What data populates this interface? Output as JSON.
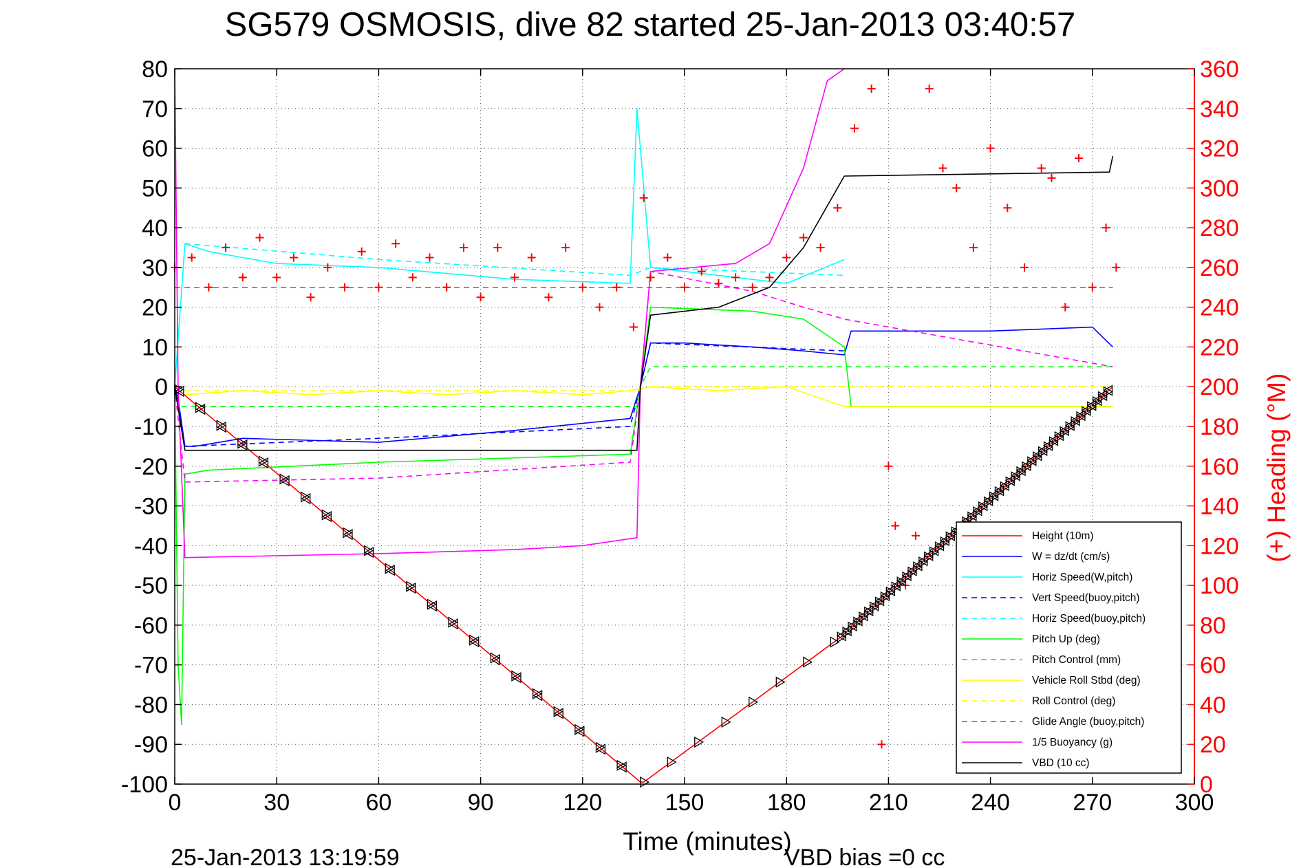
{
  "chart_data": {
    "type": "line",
    "title": "SG579 OSMOSIS, dive 82 started 25-Jan-2013 03:40:57",
    "xlabel": "Time (minutes)",
    "ylabel": "",
    "y2label": "(+) Heading (°M)",
    "xlim": [
      0,
      300
    ],
    "ylim": [
      -100,
      80
    ],
    "y2lim": [
      0,
      360
    ],
    "xticks": [
      "0",
      "30",
      "60",
      "90",
      "120",
      "150",
      "180",
      "210",
      "240",
      "270",
      "300"
    ],
    "yticks": [
      "80",
      "70",
      "60",
      "50",
      "40",
      "30",
      "20",
      "10",
      "0",
      "-10",
      "-20",
      "-30",
      "-40",
      "-50",
      "-60",
      "-70",
      "-80",
      "-90",
      "-100"
    ],
    "y2ticks": [
      "360",
      "340",
      "320",
      "300",
      "280",
      "260",
      "240",
      "220",
      "200",
      "180",
      "160",
      "140",
      "120",
      "100",
      "80",
      "60",
      "40",
      "20",
      "0"
    ],
    "grid": true,
    "legend_position": "bottom-right",
    "footer_left": "25-Jan-2013 13:19:59",
    "footer_right": "VBD bias =0 cc",
    "colors": {
      "height": "#ff0000",
      "w": "#0000ff",
      "horiz_speed": "#00ffff",
      "pitch": "#00ff00",
      "roll": "#ffff00",
      "glide": "#ff00ff",
      "buoyancy": "#ff00ff",
      "vbd": "#000000",
      "heading": "#ff0000"
    },
    "series": [
      {
        "key": "height",
        "name": "Height (10m)",
        "color": "#ff0000",
        "dash": "",
        "x": [
          0,
          137,
          138,
          196,
          276
        ],
        "y": [
          0,
          -99.5,
          -99.5,
          -63,
          0
        ]
      },
      {
        "key": "w",
        "name": "W = dz/dt (cm/s)",
        "color": "#0000ff",
        "dash": "",
        "x": [
          0,
          1,
          3,
          6,
          20,
          60,
          100,
          134,
          137,
          140,
          150,
          170,
          185,
          197,
          199,
          240,
          270,
          276
        ],
        "y": [
          0,
          -3,
          -15,
          -15,
          -13,
          -14,
          -11,
          -8,
          0,
          11,
          11,
          10,
          9,
          8,
          14,
          14,
          15,
          10
        ]
      },
      {
        "key": "horiz_speed",
        "name": "Horiz Speed(W,pitch)",
        "color": "#00ffff",
        "dash": "",
        "x": [
          0,
          3,
          10,
          30,
          60,
          100,
          134,
          136,
          140,
          160,
          180,
          197
        ],
        "y": [
          0,
          36,
          34,
          31,
          30,
          27,
          26,
          70,
          30,
          28,
          26,
          32
        ]
      },
      {
        "key": "vert_buoy",
        "name": "Vert Speed(buoy,pitch)",
        "color": "#0000ff",
        "dash": "8,6",
        "x": [
          0,
          3,
          60,
          134,
          137,
          140,
          197
        ],
        "y": [
          0,
          -15,
          -13,
          -10,
          0,
          11,
          9
        ]
      },
      {
        "key": "horiz_buoy",
        "name": "Horiz Speed(buoy,pitch)",
        "color": "#00ffff",
        "dash": "8,6",
        "x": [
          3,
          60,
          134,
          140,
          197
        ],
        "y": [
          36,
          32,
          28,
          30,
          28
        ]
      },
      {
        "key": "pitch_up",
        "name": "Pitch Up (deg)",
        "color": "#00ff00",
        "dash": "",
        "x": [
          0,
          1,
          2,
          3,
          10,
          60,
          134,
          137,
          140,
          170,
          185,
          197,
          199,
          276
        ],
        "y": [
          0,
          -70,
          -85,
          -22,
          -21,
          -19,
          -17,
          0,
          20,
          19,
          17,
          10,
          -5,
          -5
        ]
      },
      {
        "key": "pitch_control",
        "name": "Pitch Control (mm)",
        "color": "#00ff00",
        "dash": "8,6",
        "x": [
          2,
          136,
          137,
          140,
          276
        ],
        "y": [
          -5,
          -5,
          0,
          5,
          5
        ]
      },
      {
        "key": "roll",
        "name": "Vehicle Roll Stbd (deg)",
        "color": "#ffff00",
        "dash": "",
        "x": [
          3,
          20,
          40,
          60,
          80,
          100,
          120,
          134,
          140,
          160,
          180,
          197,
          276
        ],
        "y": [
          -2,
          -1,
          -2,
          -1,
          -2,
          -1,
          -2,
          -1,
          0,
          -1,
          0,
          -5,
          -5
        ]
      },
      {
        "key": "roll_control",
        "name": "Roll Control (deg)",
        "color": "#ffff00",
        "dash": "8,6",
        "x": [
          3,
          136,
          140,
          276
        ],
        "y": [
          -1,
          -1,
          0,
          0
        ]
      },
      {
        "key": "glide",
        "name": "Glide Angle (buoy,pitch)",
        "color": "#ff00ff",
        "dash": "8,6",
        "x": [
          0,
          3,
          60,
          134,
          137,
          140,
          170,
          185,
          197,
          276
        ],
        "y": [
          0,
          -24,
          -23,
          -19,
          0,
          29,
          24,
          20,
          17,
          5
        ]
      },
      {
        "key": "buoyancy",
        "name": "1/5 Buoyancy (g)",
        "color": "#ff00ff",
        "dash": "",
        "x": [
          0,
          1,
          3,
          60,
          100,
          120,
          136,
          137,
          140,
          165,
          175,
          185,
          192,
          197
        ],
        "y": [
          80,
          0,
          -43,
          -42,
          -41,
          -40,
          -38,
          0,
          29,
          31,
          36,
          55,
          77,
          80
        ]
      },
      {
        "key": "vbd",
        "name": "VBD (10 cc)",
        "color": "#000000",
        "dash": "",
        "x": [
          0,
          3,
          60,
          136,
          137,
          140,
          160,
          175,
          185,
          197,
          275,
          276
        ],
        "y": [
          0,
          -16,
          -16,
          -16,
          0,
          18,
          20,
          25,
          35,
          53,
          54,
          58
        ]
      }
    ],
    "heading": {
      "name": "Heading",
      "marker": "+",
      "axis": "right",
      "x": [
        0,
        5,
        10,
        15,
        20,
        25,
        30,
        35,
        40,
        45,
        50,
        55,
        60,
        65,
        70,
        75,
        80,
        85,
        90,
        95,
        100,
        105,
        110,
        115,
        120,
        125,
        130,
        135,
        138,
        140,
        145,
        150,
        155,
        160,
        165,
        170,
        175,
        180,
        185,
        190,
        195,
        200,
        205,
        208,
        210,
        212,
        215,
        218,
        222,
        226,
        230,
        235,
        240,
        245,
        250,
        255,
        258,
        262,
        266,
        270,
        274,
        277
      ],
      "y": [
        260,
        265,
        250,
        270,
        255,
        275,
        255,
        265,
        245,
        260,
        250,
        268,
        250,
        272,
        255,
        265,
        250,
        270,
        245,
        270,
        255,
        265,
        245,
        270,
        250,
        240,
        250,
        230,
        295,
        255,
        265,
        250,
        258,
        252,
        255,
        250,
        255,
        265,
        275,
        270,
        290,
        330,
        350,
        20,
        160,
        130,
        100,
        125,
        350,
        310,
        300,
        270,
        320,
        290,
        260,
        310,
        305,
        240,
        315,
        250,
        280,
        260
      ]
    },
    "heading_reference": 250
  }
}
